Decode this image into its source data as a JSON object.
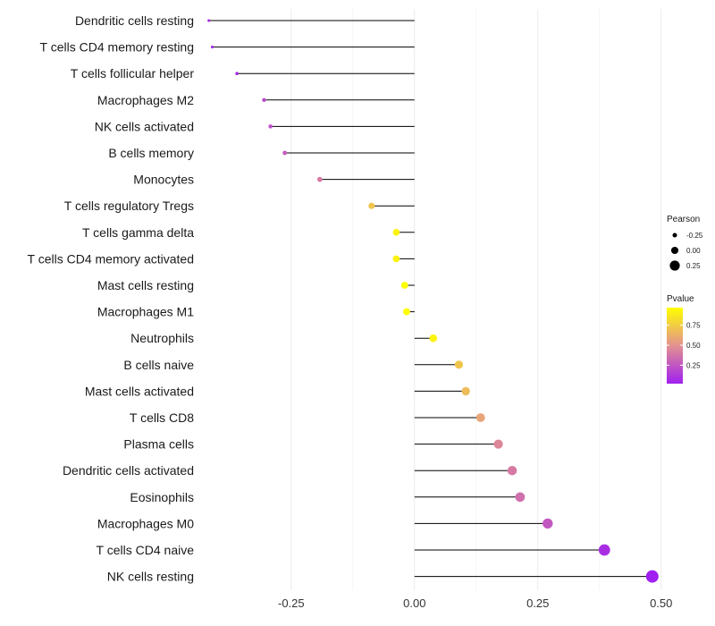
{
  "chart_data": {
    "type": "lollipop",
    "title": "",
    "xlabel": "",
    "ylabel": "",
    "xlim": [
      -0.42,
      0.515
    ],
    "x_ticks": [
      -0.25,
      0.0,
      0.25,
      0.5
    ],
    "x_tick_labels": [
      "-0.25",
      "0.00",
      "0.25",
      "0.50"
    ],
    "grid": true,
    "categories": [
      "Dendritic cells resting",
      "T cells CD4 memory resting",
      "T cells follicular helper",
      "Macrophages M2",
      "NK cells activated",
      "B cells memory",
      "Monocytes",
      "T cells regulatory  Tregs ",
      "T cells gamma delta",
      "T cells CD4 memory activated",
      "Mast cells resting",
      "Macrophages M1",
      "Neutrophils",
      "B cells naive",
      "Mast cells activated",
      "T cells CD8",
      "Plasma cells",
      "Dendritic cells activated",
      "Eosinophils",
      "Macrophages M0",
      "T cells CD4 naive",
      "NK cells resting"
    ],
    "pearson": [
      -0.417,
      -0.41,
      -0.36,
      -0.305,
      -0.292,
      -0.263,
      -0.192,
      -0.087,
      -0.037,
      -0.037,
      -0.02,
      -0.016,
      0.038,
      0.09,
      0.104,
      0.134,
      0.17,
      0.198,
      0.214,
      0.27,
      0.385,
      0.482
    ],
    "pvalue": [
      0.03,
      0.04,
      0.08,
      0.2,
      0.22,
      0.28,
      0.4,
      0.72,
      0.92,
      0.92,
      0.96,
      0.97,
      0.92,
      0.72,
      0.68,
      0.58,
      0.45,
      0.4,
      0.36,
      0.26,
      0.08,
      0.02
    ],
    "legend_size": {
      "title": "Pearson",
      "labels": [
        "-0.25",
        "0.00",
        "0.25"
      ],
      "values": [
        -0.25,
        0.0,
        0.25
      ]
    },
    "legend_color": {
      "title": "Pvalue",
      "labels": [
        "0.75",
        "0.50",
        "0.25"
      ],
      "values": [
        0.75,
        0.5,
        0.25
      ],
      "range": [
        0.02,
        0.97
      ],
      "low_color": "#a020f0",
      "mid_color": "#e39191",
      "high_color": "#ffff00"
    },
    "legend_position": "right",
    "stem_color": "#000000",
    "grid_color": "#ebebeb"
  }
}
